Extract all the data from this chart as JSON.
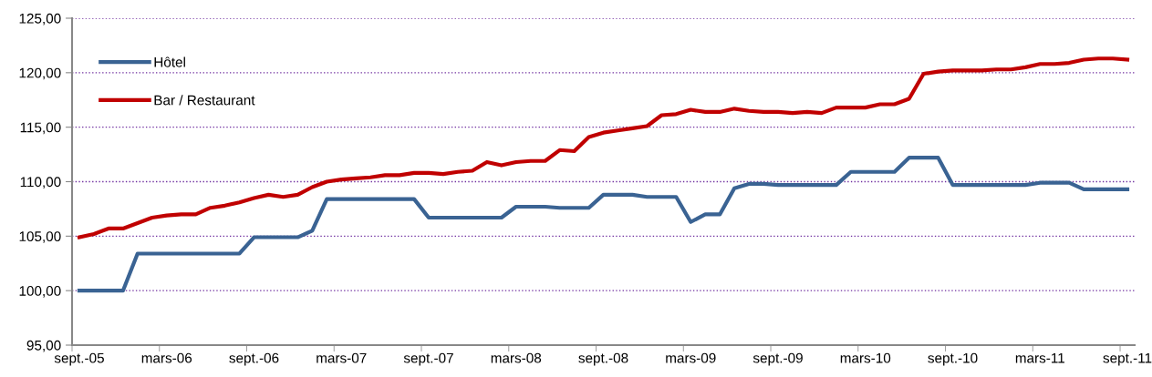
{
  "chart_data": {
    "type": "line",
    "categories": [
      "sept.-05",
      null,
      null,
      null,
      null,
      null,
      "mars-06",
      null,
      null,
      null,
      null,
      null,
      "sept.-06",
      null,
      null,
      null,
      null,
      null,
      "mars-07",
      null,
      null,
      null,
      null,
      null,
      "sept.-07",
      null,
      null,
      null,
      null,
      null,
      "mars-08",
      null,
      null,
      null,
      null,
      null,
      "sept.-08",
      null,
      null,
      null,
      null,
      null,
      "mars-09",
      null,
      null,
      null,
      null,
      null,
      "sept.-09",
      null,
      null,
      null,
      null,
      null,
      "mars-10",
      null,
      null,
      null,
      null,
      null,
      "sept.-10",
      null,
      null,
      null,
      null,
      null,
      "mars-11",
      null,
      null,
      null,
      null,
      null,
      "sept.-11"
    ],
    "series": [
      {
        "name": "Hôtel",
        "color": "#3a6393",
        "values": [
          100.0,
          100.0,
          100.0,
          100.0,
          103.4,
          103.4,
          103.4,
          103.4,
          103.4,
          103.4,
          103.4,
          103.4,
          104.9,
          104.9,
          104.9,
          104.9,
          105.5,
          108.4,
          108.4,
          108.4,
          108.4,
          108.4,
          108.4,
          108.4,
          106.7,
          106.7,
          106.7,
          106.7,
          106.7,
          106.7,
          107.7,
          107.7,
          107.7,
          107.6,
          107.6,
          107.6,
          108.8,
          108.8,
          108.8,
          108.6,
          108.6,
          108.6,
          106.3,
          107.0,
          107.0,
          109.4,
          109.8,
          109.8,
          109.7,
          109.7,
          109.7,
          109.7,
          109.7,
          110.9,
          110.9,
          110.9,
          110.9,
          112.2,
          112.2,
          112.2,
          109.7,
          109.7,
          109.7,
          109.7,
          109.7,
          109.7,
          109.9,
          109.9,
          109.9,
          109.3,
          109.3,
          109.3,
          109.3
        ]
      },
      {
        "name": "Bar / Restaurant",
        "color": "#c00000",
        "values": [
          104.9,
          105.2,
          105.7,
          105.7,
          106.2,
          106.7,
          106.9,
          107.0,
          107.0,
          107.6,
          107.8,
          108.1,
          108.5,
          108.8,
          108.6,
          108.8,
          109.5,
          110.0,
          110.2,
          110.3,
          110.4,
          110.6,
          110.6,
          110.8,
          110.8,
          110.7,
          110.9,
          111.0,
          111.8,
          111.5,
          111.8,
          111.9,
          111.9,
          112.9,
          112.8,
          114.1,
          114.5,
          114.7,
          114.9,
          115.1,
          116.1,
          116.2,
          116.6,
          116.4,
          116.4,
          116.7,
          116.5,
          116.4,
          116.4,
          116.3,
          116.4,
          116.3,
          116.8,
          116.8,
          116.8,
          117.1,
          117.1,
          117.6,
          119.9,
          120.1,
          120.2,
          120.2,
          120.2,
          120.3,
          120.3,
          120.5,
          120.8,
          120.8,
          120.9,
          121.2,
          121.3,
          121.3,
          121.2
        ]
      }
    ],
    "ylim": [
      95,
      125
    ],
    "yticks": [
      {
        "value": 95,
        "label": "95,00"
      },
      {
        "value": 100,
        "label": "100,00"
      },
      {
        "value": 105,
        "label": "105,00"
      },
      {
        "value": 110,
        "label": "110,00"
      },
      {
        "value": 115,
        "label": "115,00"
      },
      {
        "value": 120,
        "label": "120,00"
      },
      {
        "value": 125,
        "label": "125,00"
      }
    ],
    "grid": "y",
    "legend": "top left",
    "marker": "none",
    "line_style": "solid"
  }
}
